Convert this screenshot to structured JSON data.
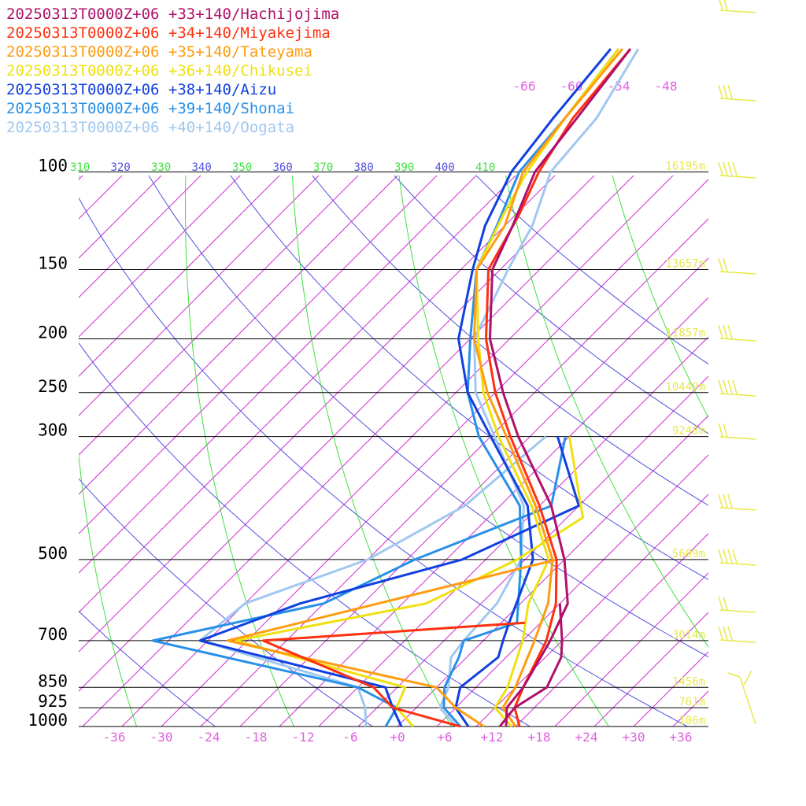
{
  "chart_data": {
    "type": "line",
    "chart_kind": "skew-T log-P sounding diagram",
    "title": "",
    "xlabel": "",
    "ylabel": "",
    "x_axis_unit": "°C",
    "y_axis": "pressure (hPa), log scale",
    "ylim": [
      1000,
      100
    ],
    "xlim": [
      -40,
      40
    ],
    "grid": true,
    "legend_position": "top-left",
    "pressure_levels": [
      {
        "p": 100,
        "label": "100",
        "height_label": "16195m"
      },
      {
        "p": 150,
        "label": "150",
        "height_label": "13657m"
      },
      {
        "p": 200,
        "label": "200",
        "height_label": "11857m"
      },
      {
        "p": 250,
        "label": "250",
        "height_label": "10449m"
      },
      {
        "p": 300,
        "label": "300",
        "height_label": "9248m"
      },
      {
        "p": 500,
        "label": "500",
        "height_label": "5609m"
      },
      {
        "p": 700,
        "label": "700",
        "height_label": "3014m"
      },
      {
        "p": 850,
        "label": "850",
        "height_label": "1456m"
      },
      {
        "p": 925,
        "label": "925",
        "height_label": "761m"
      },
      {
        "p": 1000,
        "label": "1000",
        "height_label": "106m"
      }
    ],
    "x_ticks": [
      {
        "v": -36,
        "label": "-36"
      },
      {
        "v": -30,
        "label": "-30"
      },
      {
        "v": -24,
        "label": "-24"
      },
      {
        "v": -18,
        "label": "-18"
      },
      {
        "v": -12,
        "label": "-12"
      },
      {
        "v": -6,
        "label": "-6"
      },
      {
        "v": 0,
        "label": "+0"
      },
      {
        "v": 6,
        "label": "+6"
      },
      {
        "v": 12,
        "label": "+12"
      },
      {
        "v": 18,
        "label": "+18"
      },
      {
        "v": 24,
        "label": "+24"
      },
      {
        "v": 30,
        "label": "+30"
      },
      {
        "v": 36,
        "label": "+36"
      }
    ],
    "upper_temp_labels": [
      "-66",
      "-60",
      "-54",
      "-48"
    ],
    "theta_labels": [
      {
        "v": "310",
        "color": "#40e040"
      },
      {
        "v": "320",
        "color": "#5050e0"
      },
      {
        "v": "330",
        "color": "#40e040"
      },
      {
        "v": "340",
        "color": "#5050e0"
      },
      {
        "v": "350",
        "color": "#40e040"
      },
      {
        "v": "360",
        "color": "#5050e0"
      },
      {
        "v": "370",
        "color": "#40e040"
      },
      {
        "v": "380",
        "color": "#5050e0"
      },
      {
        "v": "390",
        "color": "#40e040"
      },
      {
        "v": "400",
        "color": "#5050e0"
      },
      {
        "v": "410",
        "color": "#40e040"
      }
    ],
    "series": [
      {
        "name": "20250313T0000Z+06 +33+140/Hachijojima",
        "color": "#b0106a",
        "temperature": [
          [
            1000,
            13.8
          ],
          [
            925,
            11.5
          ],
          [
            850,
            11.0
          ],
          [
            700,
            8.5
          ],
          [
            600,
            6.0
          ],
          [
            500,
            0.0
          ],
          [
            400,
            -8.5
          ],
          [
            300,
            -21.5
          ],
          [
            250,
            -29.0
          ],
          [
            200,
            -37.5
          ],
          [
            150,
            -46.0
          ],
          [
            125,
            -49.0
          ],
          [
            100,
            -53.0
          ],
          [
            80,
            -54.5
          ],
          [
            60,
            -56.5
          ]
        ],
        "dewpoint": [
          [
            1000,
            13.0
          ],
          [
            925,
            12.5
          ],
          [
            850,
            14.0
          ],
          [
            750,
            12.0
          ],
          [
            700,
            10.0
          ],
          [
            600,
            5.0
          ]
        ]
      },
      {
        "name": "20250313T0000Z+06 +34+140/Miyakejima",
        "color": "#ff3010",
        "temperature": [
          [
            1000,
            15.5
          ],
          [
            925,
            12.5
          ],
          [
            850,
            11.0
          ],
          [
            700,
            8.0
          ],
          [
            600,
            4.5
          ],
          [
            500,
            -1.0
          ],
          [
            400,
            -10.0
          ],
          [
            300,
            -22.5
          ],
          [
            250,
            -30.0
          ],
          [
            200,
            -38.0
          ],
          [
            150,
            -46.5
          ],
          [
            120,
            -49.5
          ],
          [
            100,
            -52.5
          ],
          [
            80,
            -55.0
          ],
          [
            60,
            -56.5
          ]
        ],
        "dewpoint": [
          [
            1000,
            8.0
          ],
          [
            925,
            -3.0
          ],
          [
            850,
            -8.0
          ],
          [
            700,
            -28.0
          ],
          [
            650,
            3.0
          ]
        ]
      },
      {
        "name": "20250313T0000Z+06 +35+140/Tateyama",
        "color": "#ff9c10",
        "temperature": [
          [
            1000,
            15.0
          ],
          [
            925,
            11.0
          ],
          [
            850,
            10.0
          ],
          [
            700,
            6.5
          ],
          [
            600,
            3.5
          ],
          [
            500,
            -1.5
          ],
          [
            400,
            -10.5
          ],
          [
            300,
            -23.0
          ],
          [
            250,
            -31.0
          ],
          [
            200,
            -39.5
          ],
          [
            150,
            -48.0
          ],
          [
            125,
            -50.0
          ],
          [
            100,
            -54.5
          ],
          [
            80,
            -56.0
          ],
          [
            60,
            -57.5
          ]
        ],
        "dewpoint": [
          [
            1000,
            11.0
          ],
          [
            925,
            5.0
          ],
          [
            850,
            0.0
          ],
          [
            700,
            -32.5
          ],
          [
            500,
            -1.0
          ]
        ]
      },
      {
        "name": "20250313T0000Z+06 +36+140/Chikusei",
        "color": "#f0e010",
        "temperature": [
          [
            1000,
            14.5
          ],
          [
            925,
            10.0
          ],
          [
            850,
            9.0
          ],
          [
            700,
            5.0
          ],
          [
            600,
            1.0
          ],
          [
            500,
            -2.0
          ],
          [
            400,
            -11.0
          ],
          [
            300,
            -24.0
          ],
          [
            250,
            -31.5
          ],
          [
            200,
            -39.0
          ],
          [
            150,
            -48.0
          ],
          [
            120,
            -51.5
          ],
          [
            100,
            -54.0
          ],
          [
            80,
            -56.0
          ],
          [
            60,
            -58.0
          ]
        ],
        "dewpoint": [
          [
            1000,
            2.0
          ],
          [
            925,
            -2.5
          ],
          [
            850,
            -4.0
          ],
          [
            700,
            -31.5
          ],
          [
            600,
            -12.0
          ],
          [
            500,
            -6.0
          ],
          [
            420,
            -3.0
          ],
          [
            300,
            -15.0
          ]
        ]
      },
      {
        "name": "20250313T0000Z+06 +38+140/Aizu",
        "color": "#1040e0",
        "temperature": [
          [
            1000,
            9.0
          ],
          [
            925,
            5.0
          ],
          [
            850,
            3.0
          ],
          [
            750,
            4.0
          ],
          [
            700,
            2.5
          ],
          [
            650,
            1.0
          ],
          [
            500,
            -4.0
          ],
          [
            400,
            -11.5
          ],
          [
            300,
            -25.0
          ],
          [
            250,
            -33.5
          ],
          [
            200,
            -41.5
          ],
          [
            150,
            -48.5
          ],
          [
            125,
            -52.5
          ],
          [
            100,
            -56.0
          ],
          [
            80,
            -57.5
          ],
          [
            60,
            -59.0
          ]
        ],
        "dewpoint": [
          [
            1000,
            0.5
          ],
          [
            925,
            -3.0
          ],
          [
            850,
            -6.5
          ],
          [
            700,
            -36.0
          ],
          [
            600,
            -28.0
          ],
          [
            500,
            -13.0
          ],
          [
            400,
            -5.0
          ],
          [
            300,
            -16.5
          ]
        ]
      },
      {
        "name": "20250313T0000Z+06 +39+140/Shonai",
        "color": "#2890e8",
        "temperature": [
          [
            1000,
            8.0
          ],
          [
            925,
            3.5
          ],
          [
            850,
            1.0
          ],
          [
            750,
            -1.0
          ],
          [
            700,
            -2.5
          ],
          [
            650,
            2.0
          ],
          [
            500,
            -5.5
          ],
          [
            400,
            -12.5
          ],
          [
            300,
            -26.5
          ],
          [
            250,
            -33.5
          ],
          [
            200,
            -40.0
          ],
          [
            150,
            -48.0
          ],
          [
            125,
            -51.0
          ],
          [
            100,
            -55.0
          ],
          [
            80,
            -56.0
          ],
          [
            60,
            -58.0
          ]
        ],
        "dewpoint": [
          [
            1000,
            -1.5
          ],
          [
            925,
            -2.5
          ],
          [
            850,
            -10.0
          ],
          [
            700,
            -42.0
          ],
          [
            600,
            -25.0
          ],
          [
            500,
            -19.0
          ],
          [
            400,
            -8.5
          ],
          [
            300,
            -15.5
          ]
        ]
      },
      {
        "name": "20250313T0000Z+06 +40+140/Oogata",
        "color": "#a0c8f0",
        "temperature": [
          [
            1000,
            7.5
          ],
          [
            925,
            3.0
          ],
          [
            850,
            1.5
          ],
          [
            750,
            -2.0
          ],
          [
            700,
            -2.5
          ],
          [
            600,
            -3.0
          ],
          [
            500,
            -5.5
          ],
          [
            400,
            -12.0
          ],
          [
            300,
            -24.5
          ],
          [
            250,
            -32.5
          ],
          [
            220,
            -36.5
          ],
          [
            200,
            -39.5
          ],
          [
            150,
            -44.0
          ],
          [
            125,
            -46.5
          ],
          [
            100,
            -51.0
          ],
          [
            80,
            -52.0
          ],
          [
            60,
            -55.5
          ]
        ],
        "dewpoint": [
          [
            1000,
            -4.0
          ],
          [
            925,
            -6.5
          ],
          [
            850,
            -10.0
          ],
          [
            700,
            -36.0
          ],
          [
            600,
            -35.0
          ],
          [
            500,
            -25.0
          ],
          [
            400,
            -19.5
          ],
          [
            300,
            -18.0
          ]
        ]
      }
    ],
    "wind_barbs_color": "#e8e84a"
  }
}
